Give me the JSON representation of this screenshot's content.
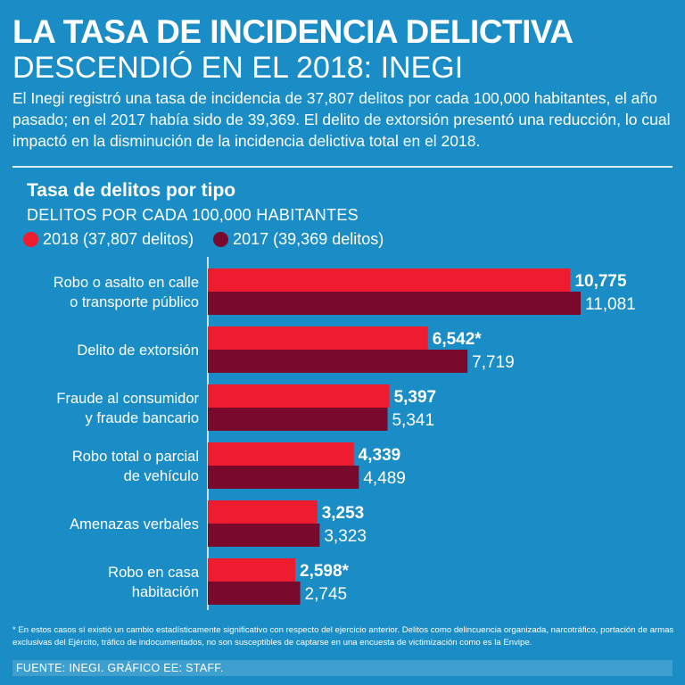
{
  "header": {
    "title_line1": "LA TASA DE INCIDENCIA DELICTIVA",
    "title_line2": "DESCENDIÓ EN EL 2018: INEGI",
    "intro": "El Inegi registró una tasa de incidencia de 37,807 delitos por cada 100,000 habitantes, el año pasado; en el 2017 había sido de 39,369. El delito de extorsión presentó una reducción, lo cual impactó en la disminución de la incidencia delictiva total en el 2018."
  },
  "footnote": "* En estos casos sí existió un cambio estadísticamente significativo con respecto del ejercicio anterior. Delitos como delincuencia organizada, narcotráfico, portación de armas exclusivas del Ejército, tráfico de indocumentados, no son susceptibles de captarse en una encuesta de victimización como es la Envipe.",
  "source": "FUENTE: INEGI. GRÁFICO EE: STAFF.",
  "colors": {
    "background": "#1a8cc6",
    "series_2018": "#ee1c2e",
    "series_2017": "#7a0a2c",
    "text": "#ffffff"
  },
  "chart_data": {
    "type": "bar",
    "orientation": "horizontal",
    "title": "Tasa de delitos por tipo",
    "subtitle": "DELITOS POR CADA 100,000 HABITANTES",
    "legend_position": "top-left",
    "xlim": [
      0,
      11500
    ],
    "categories": [
      [
        "Robo o asalto en calle",
        "o transporte público"
      ],
      [
        "Delito de extorsión"
      ],
      [
        "Fraude al consumidor",
        "y fraude bancario"
      ],
      [
        "Robo total o parcial",
        "de vehículo"
      ],
      [
        "Amenazas verbales"
      ],
      [
        "Robo en casa",
        "habitación"
      ]
    ],
    "series": [
      {
        "name": "2018 (37,807 delitos)",
        "color": "#ee1c2e",
        "values": [
          10775,
          6542,
          5397,
          4339,
          3253,
          2598
        ],
        "labels": [
          "10,775",
          "6,542*",
          "5,397",
          "4,339",
          "3,253",
          "2,598*"
        ]
      },
      {
        "name": "2017 (39,369 delitos)",
        "color": "#7a0a2c",
        "values": [
          11081,
          7719,
          5341,
          4489,
          3323,
          2745
        ],
        "labels": [
          "11,081",
          "7,719",
          "5,341",
          "4,489",
          "3,323",
          "2,745"
        ]
      }
    ]
  }
}
